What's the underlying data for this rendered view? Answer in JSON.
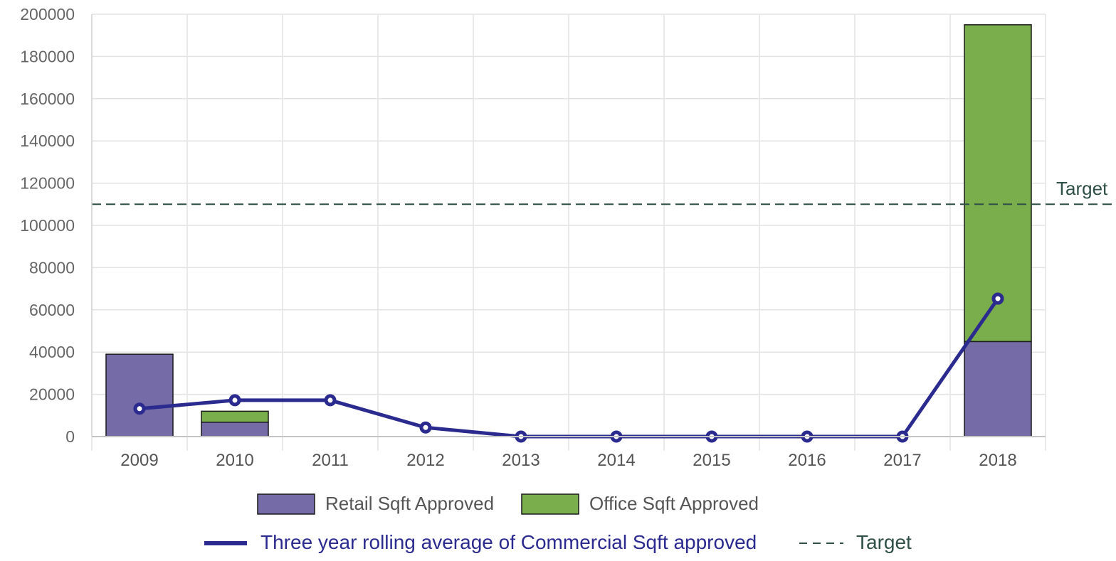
{
  "chart_data": {
    "type": "bar",
    "stacked": true,
    "categories": [
      "2009",
      "2010",
      "2011",
      "2012",
      "2013",
      "2014",
      "2015",
      "2016",
      "2017",
      "2018"
    ],
    "series": [
      {
        "name": "Retail Sqft Approved",
        "type": "bar",
        "color": "#756ba7",
        "values": [
          39000,
          6800,
          0,
          0,
          0,
          0,
          0,
          0,
          0,
          45000
        ]
      },
      {
        "name": "Office Sqft Approved",
        "type": "bar",
        "color": "#7aad4b",
        "values": [
          0,
          5200,
          0,
          0,
          0,
          0,
          0,
          0,
          0,
          150000
        ]
      },
      {
        "name": "Three year rolling average of Commercial Sqft approved",
        "type": "line",
        "color": "#2b2a8e",
        "values": [
          13200,
          17200,
          17200,
          4300,
          0,
          0,
          0,
          0,
          0,
          65300
        ]
      }
    ],
    "target": {
      "label": "Target",
      "value": 110000,
      "color": "#2f4f47"
    },
    "ylim": [
      0,
      200000
    ],
    "yticks": [
      "0",
      "20000",
      "40000",
      "60000",
      "80000",
      "100000",
      "120000",
      "140000",
      "160000",
      "180000",
      "200000"
    ],
    "grid": true,
    "legend_position": "bottom",
    "legend": {
      "row1": [
        "Retail Sqft Approved",
        "Office Sqft Approved"
      ],
      "line_label": "Three year rolling average of Commercial Sqft approved",
      "target_label": "Target"
    },
    "xlabel": "",
    "ylabel": "",
    "title": ""
  }
}
